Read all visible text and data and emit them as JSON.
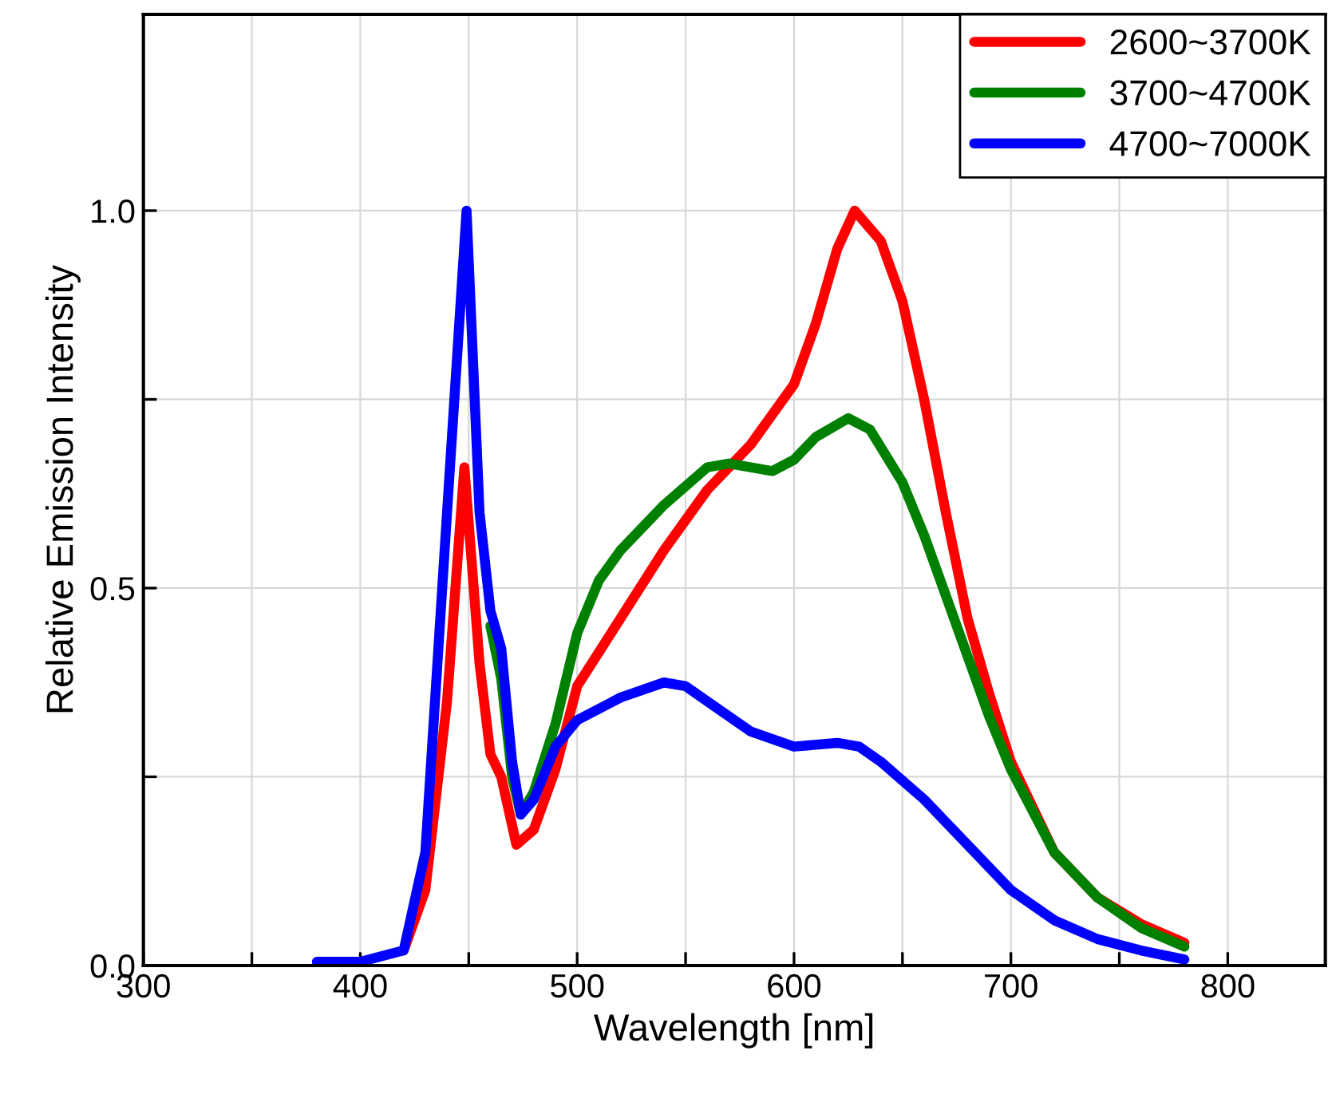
{
  "chart_data": {
    "type": "line",
    "xlabel": "Wavelength [nm]",
    "ylabel": "Relative Emission Intensity",
    "xlim": [
      300,
      845
    ],
    "ylim": [
      0,
      1.26
    ],
    "xticks": [
      300,
      {
        "value": 350,
        "label": null
      },
      400,
      {
        "value": 450,
        "label": null
      },
      500,
      {
        "value": 550,
        "label": null
      },
      600,
      {
        "value": 650,
        "label": null
      },
      700,
      {
        "value": 750,
        "label": null
      },
      800
    ],
    "yticks": [
      {
        "value": 0,
        "label": "0.0"
      },
      {
        "value": 0.25,
        "label": null
      },
      0.5,
      {
        "value": 0.75,
        "label": null
      },
      {
        "value": 1,
        "label": "1.0"
      }
    ],
    "grid": true,
    "legend": "top right",
    "line_style": "solid",
    "marker": "none",
    "series": [
      {
        "name": "2600~3700K",
        "color": "#ff0000",
        "x": [
          420,
          430,
          440,
          448,
          455,
          460,
          465,
          472,
          480,
          490,
          500,
          520,
          540,
          560,
          580,
          600,
          610,
          620,
          628,
          640,
          650,
          660,
          670,
          680,
          690,
          700,
          720,
          740,
          760,
          780
        ],
        "values": [
          0.02,
          0.1,
          0.35,
          0.66,
          0.4,
          0.28,
          0.25,
          0.16,
          0.18,
          0.26,
          0.37,
          0.46,
          0.55,
          0.63,
          0.69,
          0.77,
          0.85,
          0.95,
          1.0,
          0.96,
          0.88,
          0.75,
          0.6,
          0.46,
          0.36,
          0.27,
          0.15,
          0.09,
          0.055,
          0.03
        ]
      },
      {
        "name": "3700~4700K",
        "color": "#008000",
        "x": [
          460,
          465,
          470,
          474,
          480,
          490,
          500,
          510,
          520,
          540,
          560,
          570,
          590,
          600,
          610,
          625,
          635,
          650,
          660,
          670,
          680,
          690,
          700,
          720,
          740,
          760,
          780
        ],
        "values": [
          0.45,
          0.38,
          0.25,
          0.2,
          0.23,
          0.32,
          0.44,
          0.51,
          0.55,
          0.61,
          0.66,
          0.665,
          0.655,
          0.67,
          0.7,
          0.725,
          0.71,
          0.64,
          0.57,
          0.49,
          0.41,
          0.33,
          0.26,
          0.15,
          0.09,
          0.05,
          0.025
        ]
      },
      {
        "name": "4700~7000K",
        "color": "#0000ff",
        "x": [
          380,
          400,
          420,
          430,
          440,
          449,
          455,
          460,
          465,
          470,
          474,
          480,
          490,
          500,
          520,
          540,
          550,
          560,
          580,
          600,
          620,
          630,
          640,
          660,
          680,
          700,
          720,
          740,
          760,
          780
        ],
        "values": [
          0.005,
          0.005,
          0.02,
          0.15,
          0.6,
          1.0,
          0.6,
          0.47,
          0.42,
          0.27,
          0.2,
          0.22,
          0.29,
          0.325,
          0.355,
          0.375,
          0.37,
          0.35,
          0.31,
          0.29,
          0.295,
          0.29,
          0.27,
          0.22,
          0.16,
          0.1,
          0.06,
          0.035,
          0.02,
          0.008
        ]
      }
    ]
  }
}
